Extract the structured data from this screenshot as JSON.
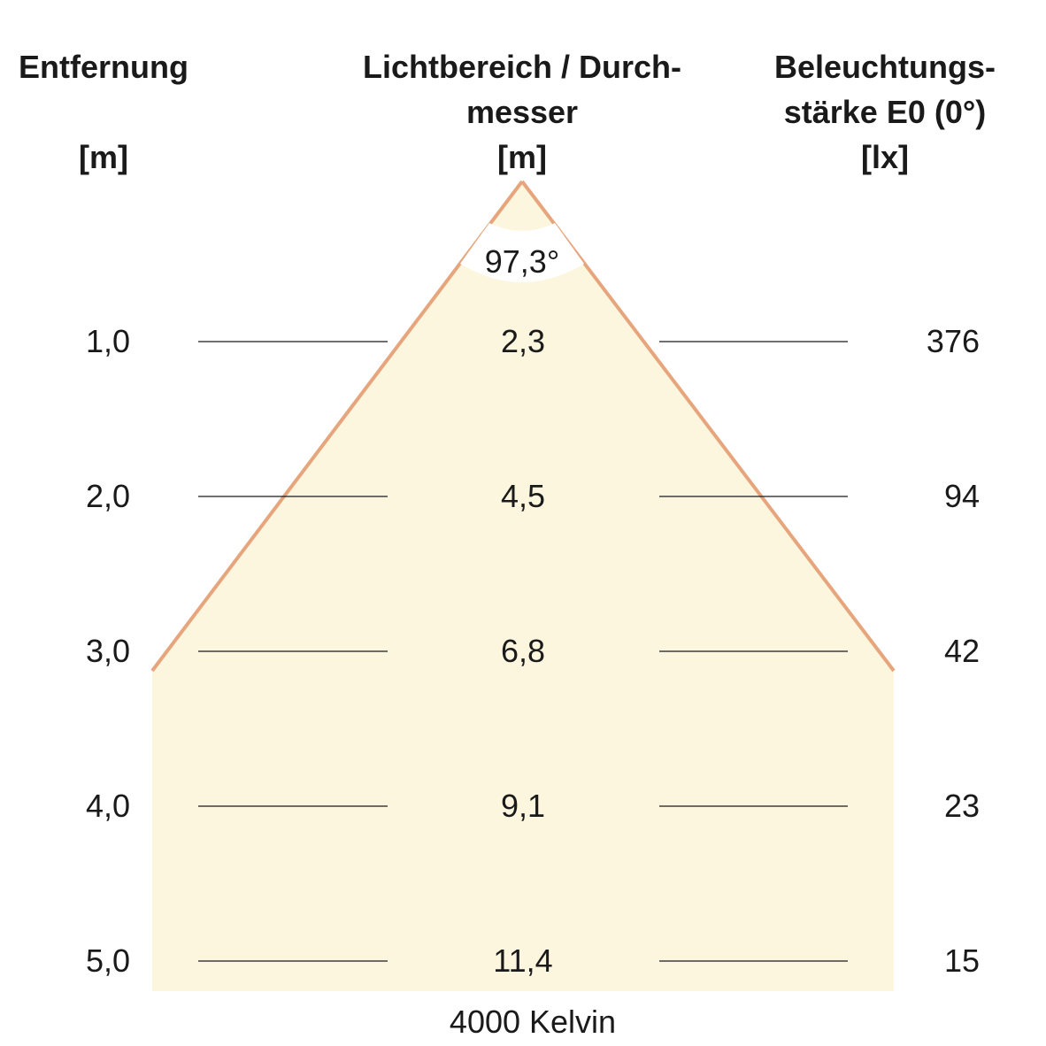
{
  "headers": {
    "distance": {
      "line1": "Entfernung",
      "unit": "[m]"
    },
    "diameter": {
      "line1": "Lichtbereich / Durch-",
      "line2": "messer",
      "unit": "[m]"
    },
    "illuminance": {
      "line1": "Beleuchtungs-",
      "line2": "stärke E0 (0°)",
      "unit": "[lx]"
    }
  },
  "beam_angle": "97,3°",
  "rows": [
    {
      "distance": "1,0",
      "diameter": "2,3",
      "lux": "376"
    },
    {
      "distance": "2,0",
      "diameter": "4,5",
      "lux": "94"
    },
    {
      "distance": "3,0",
      "diameter": "6,8",
      "lux": "42"
    },
    {
      "distance": "4,0",
      "diameter": "9,1",
      "lux": "23"
    },
    {
      "distance": "5,0",
      "diameter": "11,4",
      "lux": "15"
    }
  ],
  "footer": "4000 Kelvin",
  "colors": {
    "beam_fill": "#fdf6df",
    "beam_edge": "#e6a57c",
    "guide_line": "#1a1a1a"
  }
}
